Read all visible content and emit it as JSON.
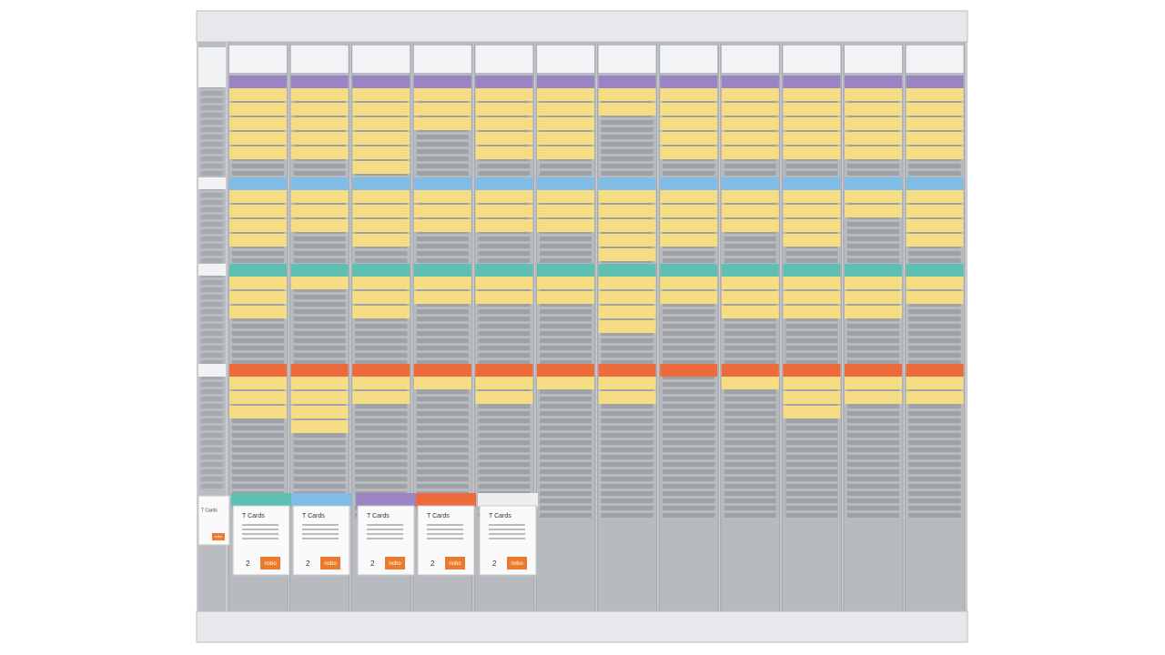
{
  "boxes": [
    {
      "title": "T Cards",
      "count": "2",
      "brand": "nobo"
    },
    {
      "title": "T Cards",
      "count": "2",
      "brand": "nobo"
    },
    {
      "title": "T Cards",
      "count": "2",
      "brand": "nobo"
    },
    {
      "title": "T Cards",
      "count": "2",
      "brand": "nobo"
    },
    {
      "title": "T Cards",
      "count": "2",
      "brand": "nobo"
    }
  ],
  "small_box": {
    "title": "T Cards",
    "brand": "nobo"
  }
}
